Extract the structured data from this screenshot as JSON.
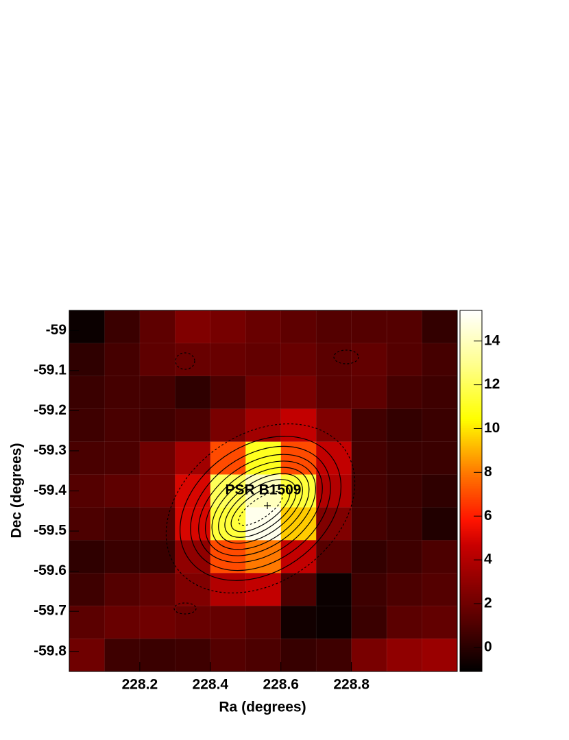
{
  "chart_data": {
    "type": "heatmap",
    "xlabel": "Ra (degrees)",
    "ylabel": "Dec (degrees)",
    "annotation": "PSR B1509",
    "colormap": "hot",
    "xlim": [
      228.0,
      229.1
    ],
    "xticks": [
      228.2,
      228.4,
      228.6,
      228.8
    ],
    "ylim": [
      -59.85,
      -58.95
    ],
    "yticks": [
      -59,
      -59.1,
      -59.2,
      -59.3,
      -59.4,
      -59.5,
      -59.6,
      -59.7,
      -59.8
    ],
    "zlim": [
      -1.1,
      15.4
    ],
    "zticks": [
      0,
      2,
      4,
      6,
      8,
      10,
      12,
      14
    ],
    "z": [
      [
        -0.8,
        0.5,
        1.5,
        2.5,
        2.2,
        1.8,
        1.5,
        1.2,
        1.2,
        1.2,
        0.3
      ],
      [
        0.2,
        0.8,
        1.5,
        1.8,
        1.8,
        1.6,
        1.8,
        1.4,
        1.6,
        1.2,
        0.8
      ],
      [
        0.5,
        0.8,
        0.8,
        0.2,
        1.0,
        2.0,
        2.2,
        1.4,
        1.5,
        0.8,
        0.6
      ],
      [
        0.6,
        0.9,
        0.7,
        1.0,
        2.3,
        3.5,
        4.5,
        2.5,
        0.7,
        0.3,
        0.5
      ],
      [
        0.9,
        1.0,
        2.0,
        3.5,
        7.0,
        11.0,
        7.0,
        4.5,
        0.8,
        0.5,
        0.5
      ],
      [
        1.2,
        1.5,
        2.0,
        5.0,
        12.0,
        14.0,
        11.5,
        4.0,
        0.8,
        0.5,
        0.2
      ],
      [
        1.0,
        0.8,
        1.2,
        5.0,
        11.5,
        15.0,
        9.5,
        2.5,
        0.8,
        0.5,
        -0.2
      ],
      [
        0.2,
        0.5,
        0.5,
        3.0,
        7.0,
        8.0,
        4.5,
        1.3,
        0.3,
        0.6,
        1.0
      ],
      [
        0.6,
        1.2,
        1.6,
        2.5,
        4.0,
        4.5,
        1.0,
        -0.8,
        0.6,
        1.0,
        1.2
      ],
      [
        1.4,
        1.8,
        2.0,
        1.8,
        1.7,
        1.3,
        -0.6,
        -0.8,
        0.5,
        1.4,
        1.6
      ],
      [
        2.0,
        0.6,
        0.5,
        0.6,
        1.2,
        1.0,
        0.4,
        0.6,
        2.3,
        3.0,
        3.3
      ]
    ]
  }
}
